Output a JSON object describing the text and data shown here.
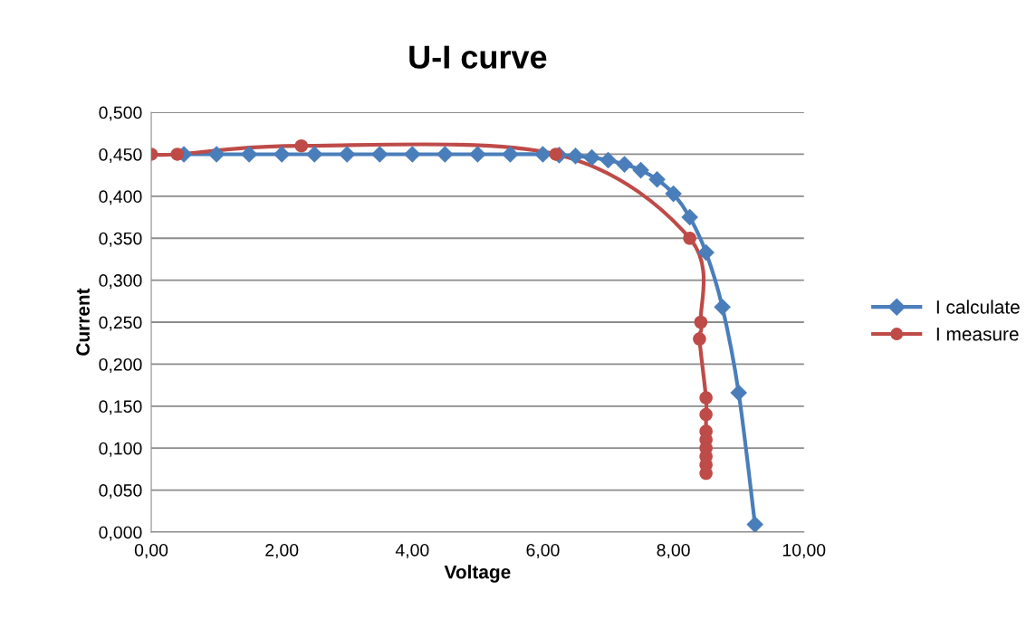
{
  "chart_data": {
    "type": "line",
    "title": "U-I curve",
    "xlabel": "Voltage",
    "ylabel": "Current",
    "xlim": [
      0,
      10
    ],
    "xticks": [
      {
        "value": 0,
        "label": "0,00"
      },
      {
        "value": 2,
        "label": "2,00"
      },
      {
        "value": 4,
        "label": "4,00"
      },
      {
        "value": 6,
        "label": "6,00"
      },
      {
        "value": 8,
        "label": "8,00"
      },
      {
        "value": 10,
        "label": "10,00"
      }
    ],
    "ylim": [
      0,
      0.5
    ],
    "yticks": [
      {
        "value": 0,
        "label": "0,000"
      },
      {
        "value": 0.05,
        "label": "0,050"
      },
      {
        "value": 0.1,
        "label": "0,100"
      },
      {
        "value": 0.15,
        "label": "0,150"
      },
      {
        "value": 0.2,
        "label": "0,200"
      },
      {
        "value": 0.25,
        "label": "0,250"
      },
      {
        "value": 0.3,
        "label": "0,300"
      },
      {
        "value": 0.35,
        "label": "0,350"
      },
      {
        "value": 0.4,
        "label": "0,400"
      },
      {
        "value": 0.45,
        "label": "0,450"
      },
      {
        "value": 0.5,
        "label": "0,500"
      }
    ],
    "grid": "y",
    "legend": "right",
    "line_style": "solid",
    "series": [
      {
        "name": "I calculate",
        "color": "#4a7ebb",
        "marker": "diamond",
        "x": [
          0.5,
          1,
          1.5,
          2,
          2.5,
          3,
          3.5,
          4,
          4.5,
          5,
          5.5,
          6,
          6.25,
          6.5,
          6.75,
          7,
          7.25,
          7.5,
          7.75,
          8,
          8.25,
          8.5,
          8.75,
          9,
          9.25
        ],
        "values": [
          0.45,
          0.45,
          0.45,
          0.45,
          0.45,
          0.45,
          0.45,
          0.45,
          0.45,
          0.45,
          0.45,
          0.45,
          0.449,
          0.448,
          0.446,
          0.443,
          0.438,
          0.431,
          0.42,
          0.403,
          0.375,
          0.333,
          0.268,
          0.166,
          0.009
        ]
      },
      {
        "name": "I measure",
        "color": "#be4b48",
        "marker": "circle",
        "x": [
          0,
          0.4,
          2.3,
          6.2,
          8.25,
          8.42,
          8.4,
          8.5,
          8.5,
          8.5,
          8.5,
          8.5,
          8.5,
          8.5,
          8.5
        ],
        "values": [
          0.45,
          0.45,
          0.46,
          0.45,
          0.35,
          0.25,
          0.23,
          0.16,
          0.14,
          0.12,
          0.11,
          0.1,
          0.09,
          0.08,
          0.07
        ]
      }
    ]
  }
}
